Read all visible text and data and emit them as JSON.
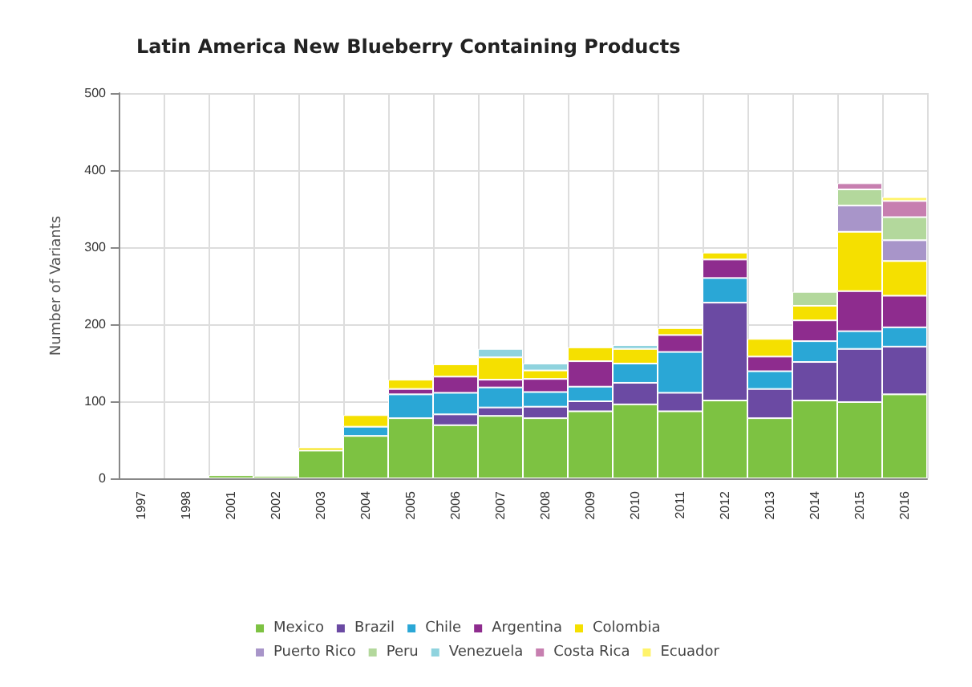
{
  "chart_data": {
    "type": "bar",
    "stacked": true,
    "title": "Latin America New Blueberry Containing Products",
    "ylabel": "Number of Variants",
    "categories": [
      "1997",
      "1998",
      "2001",
      "2002",
      "2003",
      "2004",
      "2005",
      "2006",
      "2007",
      "2008",
      "2009",
      "2010",
      "2011",
      "2012",
      "2013",
      "2014",
      "2015",
      "2016"
    ],
    "ylim": [
      0,
      500
    ],
    "yticks": [
      0,
      100,
      200,
      300,
      400,
      500
    ],
    "grid": true,
    "legend": "bottom",
    "series": [
      {
        "name": "Mexico",
        "color": "#7dc242",
        "values": [
          null,
          null,
          4,
          3,
          36,
          55,
          78,
          69,
          81,
          78,
          87,
          96,
          87,
          101,
          78,
          101,
          99,
          109
        ]
      },
      {
        "name": "Brazil",
        "color": "#6b4aa3",
        "values": [
          null,
          null,
          null,
          null,
          null,
          null,
          null,
          14,
          11,
          15,
          13,
          28,
          24,
          127,
          38,
          50,
          69,
          62
        ]
      },
      {
        "name": "Chile",
        "color": "#2aa7d6",
        "values": [
          null,
          null,
          null,
          null,
          null,
          12,
          31,
          28,
          26,
          19,
          19,
          25,
          53,
          32,
          23,
          27,
          23,
          25
        ]
      },
      {
        "name": "Argentina",
        "color": "#8e2c8e",
        "values": [
          null,
          null,
          null,
          null,
          null,
          null,
          7,
          21,
          10,
          17,
          33,
          null,
          22,
          24,
          19,
          27,
          52,
          41
        ]
      },
      {
        "name": "Colombia",
        "color": "#f5e000",
        "values": [
          null,
          null,
          null,
          null,
          4,
          15,
          12,
          16,
          29,
          11,
          18,
          19,
          9,
          9,
          23,
          19,
          77,
          45
        ]
      },
      {
        "name": "Puerto Rico",
        "color": "#a895c9",
        "values": [
          null,
          null,
          null,
          null,
          null,
          null,
          null,
          null,
          null,
          null,
          null,
          null,
          null,
          null,
          null,
          null,
          34,
          27
        ]
      },
      {
        "name": "Peru",
        "color": "#b3d89c",
        "values": [
          null,
          null,
          null,
          null,
          null,
          null,
          null,
          null,
          null,
          null,
          null,
          null,
          null,
          null,
          null,
          18,
          21,
          30
        ]
      },
      {
        "name": "Venezuela",
        "color": "#8fd3de",
        "values": [
          null,
          null,
          null,
          null,
          null,
          null,
          null,
          null,
          11,
          9,
          null,
          5,
          null,
          null,
          null,
          null,
          null,
          null
        ]
      },
      {
        "name": "Costa Rica",
        "color": "#c77fb0",
        "values": [
          null,
          null,
          null,
          null,
          null,
          null,
          null,
          null,
          null,
          null,
          null,
          null,
          null,
          null,
          null,
          null,
          8,
          21
        ]
      },
      {
        "name": "Ecuador",
        "color": "#fff36a",
        "values": [
          null,
          null,
          null,
          null,
          null,
          null,
          null,
          null,
          null,
          null,
          null,
          null,
          null,
          null,
          null,
          null,
          null,
          5
        ]
      }
    ]
  }
}
